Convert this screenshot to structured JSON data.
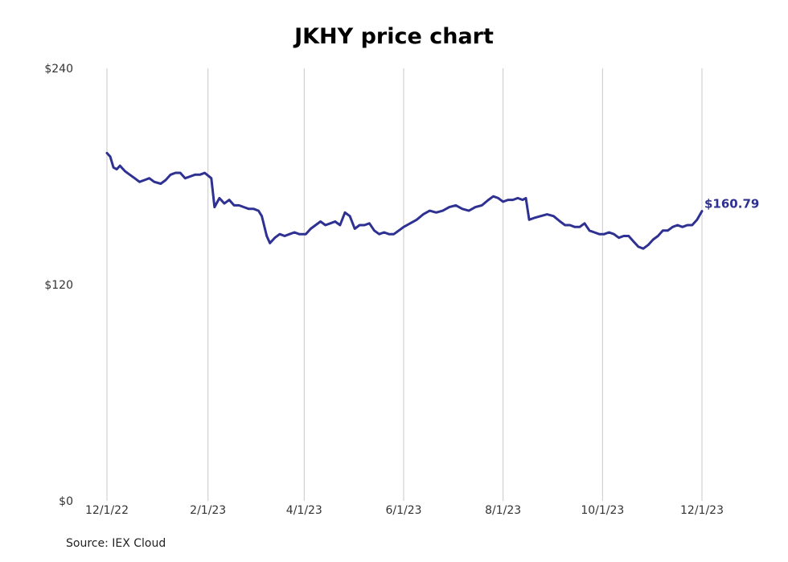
{
  "chart_data": {
    "type": "line",
    "title": "JKHY price chart",
    "xlabel": "",
    "ylabel": "",
    "ylim": [
      0,
      240
    ],
    "y_ticks": [
      "$0",
      "$120",
      "$240"
    ],
    "y_tick_values": [
      0,
      120,
      240
    ],
    "x_ticks": [
      "12/1/22",
      "2/1/23",
      "4/1/23",
      "6/1/23",
      "8/1/23",
      "10/1/23",
      "12/1/23"
    ],
    "xlim": [
      "2022-12-01",
      "2023-12-01"
    ],
    "grid": "vertical",
    "end_label": "$160.79",
    "series": [
      {
        "color": "#2e3192",
        "points": [
          [
            "2022-12-01",
            193
          ],
          [
            "2022-12-03",
            191
          ],
          [
            "2022-12-05",
            185
          ],
          [
            "2022-12-07",
            184
          ],
          [
            "2022-12-09",
            186
          ],
          [
            "2022-12-12",
            183
          ],
          [
            "2022-12-15",
            181
          ],
          [
            "2022-12-18",
            179
          ],
          [
            "2022-12-21",
            177
          ],
          [
            "2022-12-24",
            178
          ],
          [
            "2022-12-27",
            179
          ],
          [
            "2022-12-30",
            177
          ],
          [
            "2023-01-03",
            176
          ],
          [
            "2023-01-06",
            178
          ],
          [
            "2023-01-09",
            181
          ],
          [
            "2023-01-12",
            182
          ],
          [
            "2023-01-15",
            182
          ],
          [
            "2023-01-18",
            179
          ],
          [
            "2023-01-21",
            180
          ],
          [
            "2023-01-24",
            181
          ],
          [
            "2023-01-27",
            181
          ],
          [
            "2023-01-30",
            182
          ],
          [
            "2023-02-03",
            179
          ],
          [
            "2023-02-05",
            163
          ],
          [
            "2023-02-08",
            168
          ],
          [
            "2023-02-11",
            165
          ],
          [
            "2023-02-14",
            167
          ],
          [
            "2023-02-17",
            164
          ],
          [
            "2023-02-20",
            164
          ],
          [
            "2023-02-23",
            163
          ],
          [
            "2023-02-26",
            162
          ],
          [
            "2023-03-01",
            162
          ],
          [
            "2023-03-04",
            161
          ],
          [
            "2023-03-06",
            158
          ],
          [
            "2023-03-09",
            147
          ],
          [
            "2023-03-11",
            143
          ],
          [
            "2023-03-14",
            146
          ],
          [
            "2023-03-17",
            148
          ],
          [
            "2023-03-20",
            147
          ],
          [
            "2023-03-23",
            148
          ],
          [
            "2023-03-26",
            149
          ],
          [
            "2023-03-29",
            148
          ],
          [
            "2023-04-02",
            148
          ],
          [
            "2023-04-05",
            151
          ],
          [
            "2023-04-08",
            153
          ],
          [
            "2023-04-11",
            155
          ],
          [
            "2023-04-14",
            153
          ],
          [
            "2023-04-17",
            154
          ],
          [
            "2023-04-20",
            155
          ],
          [
            "2023-04-23",
            153
          ],
          [
            "2023-04-26",
            160
          ],
          [
            "2023-04-29",
            158
          ],
          [
            "2023-05-02",
            151
          ],
          [
            "2023-05-05",
            153
          ],
          [
            "2023-05-08",
            153
          ],
          [
            "2023-05-11",
            154
          ],
          [
            "2023-05-14",
            150
          ],
          [
            "2023-05-17",
            148
          ],
          [
            "2023-05-20",
            149
          ],
          [
            "2023-05-23",
            148
          ],
          [
            "2023-05-26",
            148
          ],
          [
            "2023-05-29",
            150
          ],
          [
            "2023-06-01",
            152
          ],
          [
            "2023-06-05",
            154
          ],
          [
            "2023-06-09",
            156
          ],
          [
            "2023-06-13",
            159
          ],
          [
            "2023-06-17",
            161
          ],
          [
            "2023-06-21",
            160
          ],
          [
            "2023-06-25",
            161
          ],
          [
            "2023-06-29",
            163
          ],
          [
            "2023-07-03",
            164
          ],
          [
            "2023-07-07",
            162
          ],
          [
            "2023-07-11",
            161
          ],
          [
            "2023-07-15",
            163
          ],
          [
            "2023-07-19",
            164
          ],
          [
            "2023-07-23",
            167
          ],
          [
            "2023-07-26",
            169
          ],
          [
            "2023-07-29",
            168
          ],
          [
            "2023-08-01",
            166
          ],
          [
            "2023-08-04",
            167
          ],
          [
            "2023-08-07",
            167
          ],
          [
            "2023-08-10",
            168
          ],
          [
            "2023-08-13",
            167
          ],
          [
            "2023-08-15",
            168
          ],
          [
            "2023-08-17",
            156
          ],
          [
            "2023-08-20",
            157
          ],
          [
            "2023-08-24",
            158
          ],
          [
            "2023-08-28",
            159
          ],
          [
            "2023-09-01",
            158
          ],
          [
            "2023-09-05",
            155
          ],
          [
            "2023-09-08",
            153
          ],
          [
            "2023-09-11",
            153
          ],
          [
            "2023-09-14",
            152
          ],
          [
            "2023-09-17",
            152
          ],
          [
            "2023-09-20",
            154
          ],
          [
            "2023-09-23",
            150
          ],
          [
            "2023-09-26",
            149
          ],
          [
            "2023-09-29",
            148
          ],
          [
            "2023-10-02",
            148
          ],
          [
            "2023-10-05",
            149
          ],
          [
            "2023-10-08",
            148
          ],
          [
            "2023-10-11",
            146
          ],
          [
            "2023-10-14",
            147
          ],
          [
            "2023-10-17",
            147
          ],
          [
            "2023-10-20",
            144
          ],
          [
            "2023-10-23",
            141
          ],
          [
            "2023-10-26",
            140
          ],
          [
            "2023-10-29",
            142
          ],
          [
            "2023-11-01",
            145
          ],
          [
            "2023-11-04",
            147
          ],
          [
            "2023-11-07",
            150
          ],
          [
            "2023-11-10",
            150
          ],
          [
            "2023-11-13",
            152
          ],
          [
            "2023-11-16",
            153
          ],
          [
            "2023-11-19",
            152
          ],
          [
            "2023-11-22",
            153
          ],
          [
            "2023-11-25",
            153
          ],
          [
            "2023-11-28",
            156
          ],
          [
            "2023-12-01",
            160.79
          ]
        ]
      }
    ]
  },
  "footer": {
    "source": "Source: IEX Cloud"
  }
}
